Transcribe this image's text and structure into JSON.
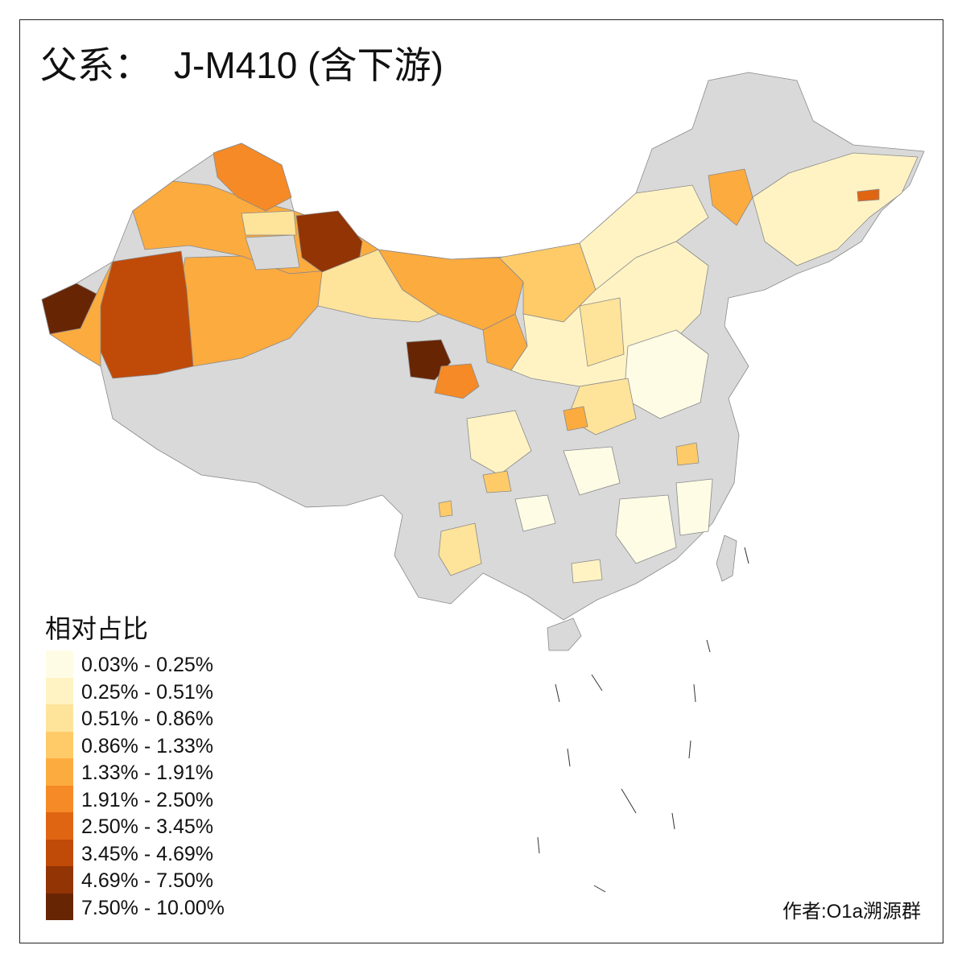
{
  "title": {
    "prefix": "父系：",
    "main": "J-M410 (含下游)"
  },
  "legend": {
    "title": "相对占比",
    "items": [
      {
        "label": "0.03% - 0.25%",
        "color": "#FFFCE6"
      },
      {
        "label": "0.25% - 0.51%",
        "color": "#FFF3C4"
      },
      {
        "label": "0.51% - 0.86%",
        "color": "#FEE39B"
      },
      {
        "label": "0.86% - 1.33%",
        "color": "#FECB68"
      },
      {
        "label": "1.33% - 1.91%",
        "color": "#FCAB3F"
      },
      {
        "label": "1.91% - 2.50%",
        "color": "#F58A26"
      },
      {
        "label": "2.50% - 3.45%",
        "color": "#E06513"
      },
      {
        "label": "3.45% - 4.69%",
        "color": "#C04A08"
      },
      {
        "label": "4.69% - 7.50%",
        "color": "#923404"
      },
      {
        "label": "7.50% - 10.00%",
        "color": "#682504"
      }
    ]
  },
  "no_data_color": "#D9D9D9",
  "credit": "作者:O1a溯源群"
}
